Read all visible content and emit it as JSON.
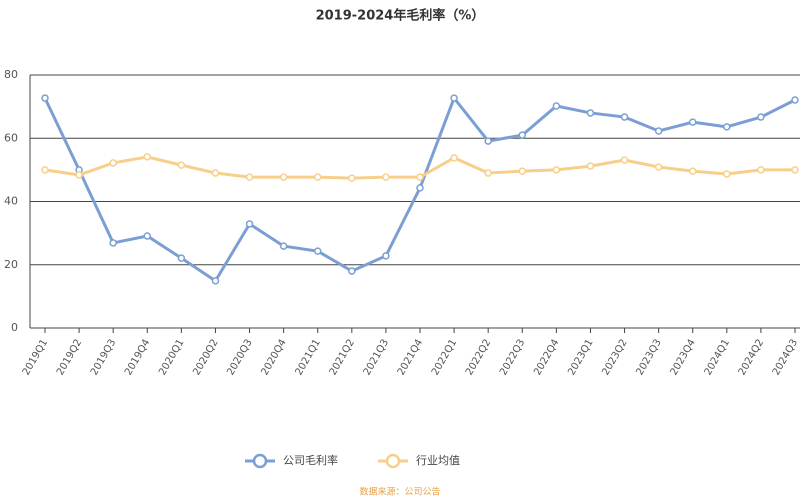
{
  "chart_data": {
    "type": "line",
    "title": "2019-2024年毛利率（%）",
    "categories": [
      "2019Q1",
      "2019Q2",
      "2019Q3",
      "2019Q4",
      "2020Q1",
      "2020Q2",
      "2020Q3",
      "2020Q4",
      "2021Q1",
      "2021Q2",
      "2021Q3",
      "2021Q4",
      "2022Q1",
      "2022Q2",
      "2022Q3",
      "2022Q4",
      "2023Q1",
      "2023Q2",
      "2023Q3",
      "2023Q4",
      "2024Q1",
      "2024Q2",
      "2024Q3"
    ],
    "series": [
      {
        "name": "公司毛利率",
        "color": "#7b9fd4",
        "values": [
          72.7,
          50,
          26.9,
          29.1,
          22.1,
          14.9,
          32.9,
          25.9,
          24.3,
          18,
          22.8,
          44.3,
          72.7,
          59.1,
          61,
          70.2,
          68,
          66.7,
          62.3,
          65.1,
          63.6,
          66.7,
          72.1
        ]
      },
      {
        "name": "行业均值",
        "color": "#f8cf8a",
        "values": [
          50,
          48.4,
          52.2,
          54.1,
          51.5,
          49,
          47.7,
          47.7,
          47.7,
          47.4,
          47.7,
          47.7,
          53.8,
          49,
          49.6,
          50,
          51.2,
          53.1,
          50.9,
          49.6,
          48.7,
          50,
          50
        ]
      }
    ],
    "ylim": [
      0,
      80
    ],
    "yticks": [
      0,
      20,
      40,
      60,
      80
    ],
    "grid": true,
    "legend": "bottom",
    "source": "数据来源：公司公告"
  }
}
